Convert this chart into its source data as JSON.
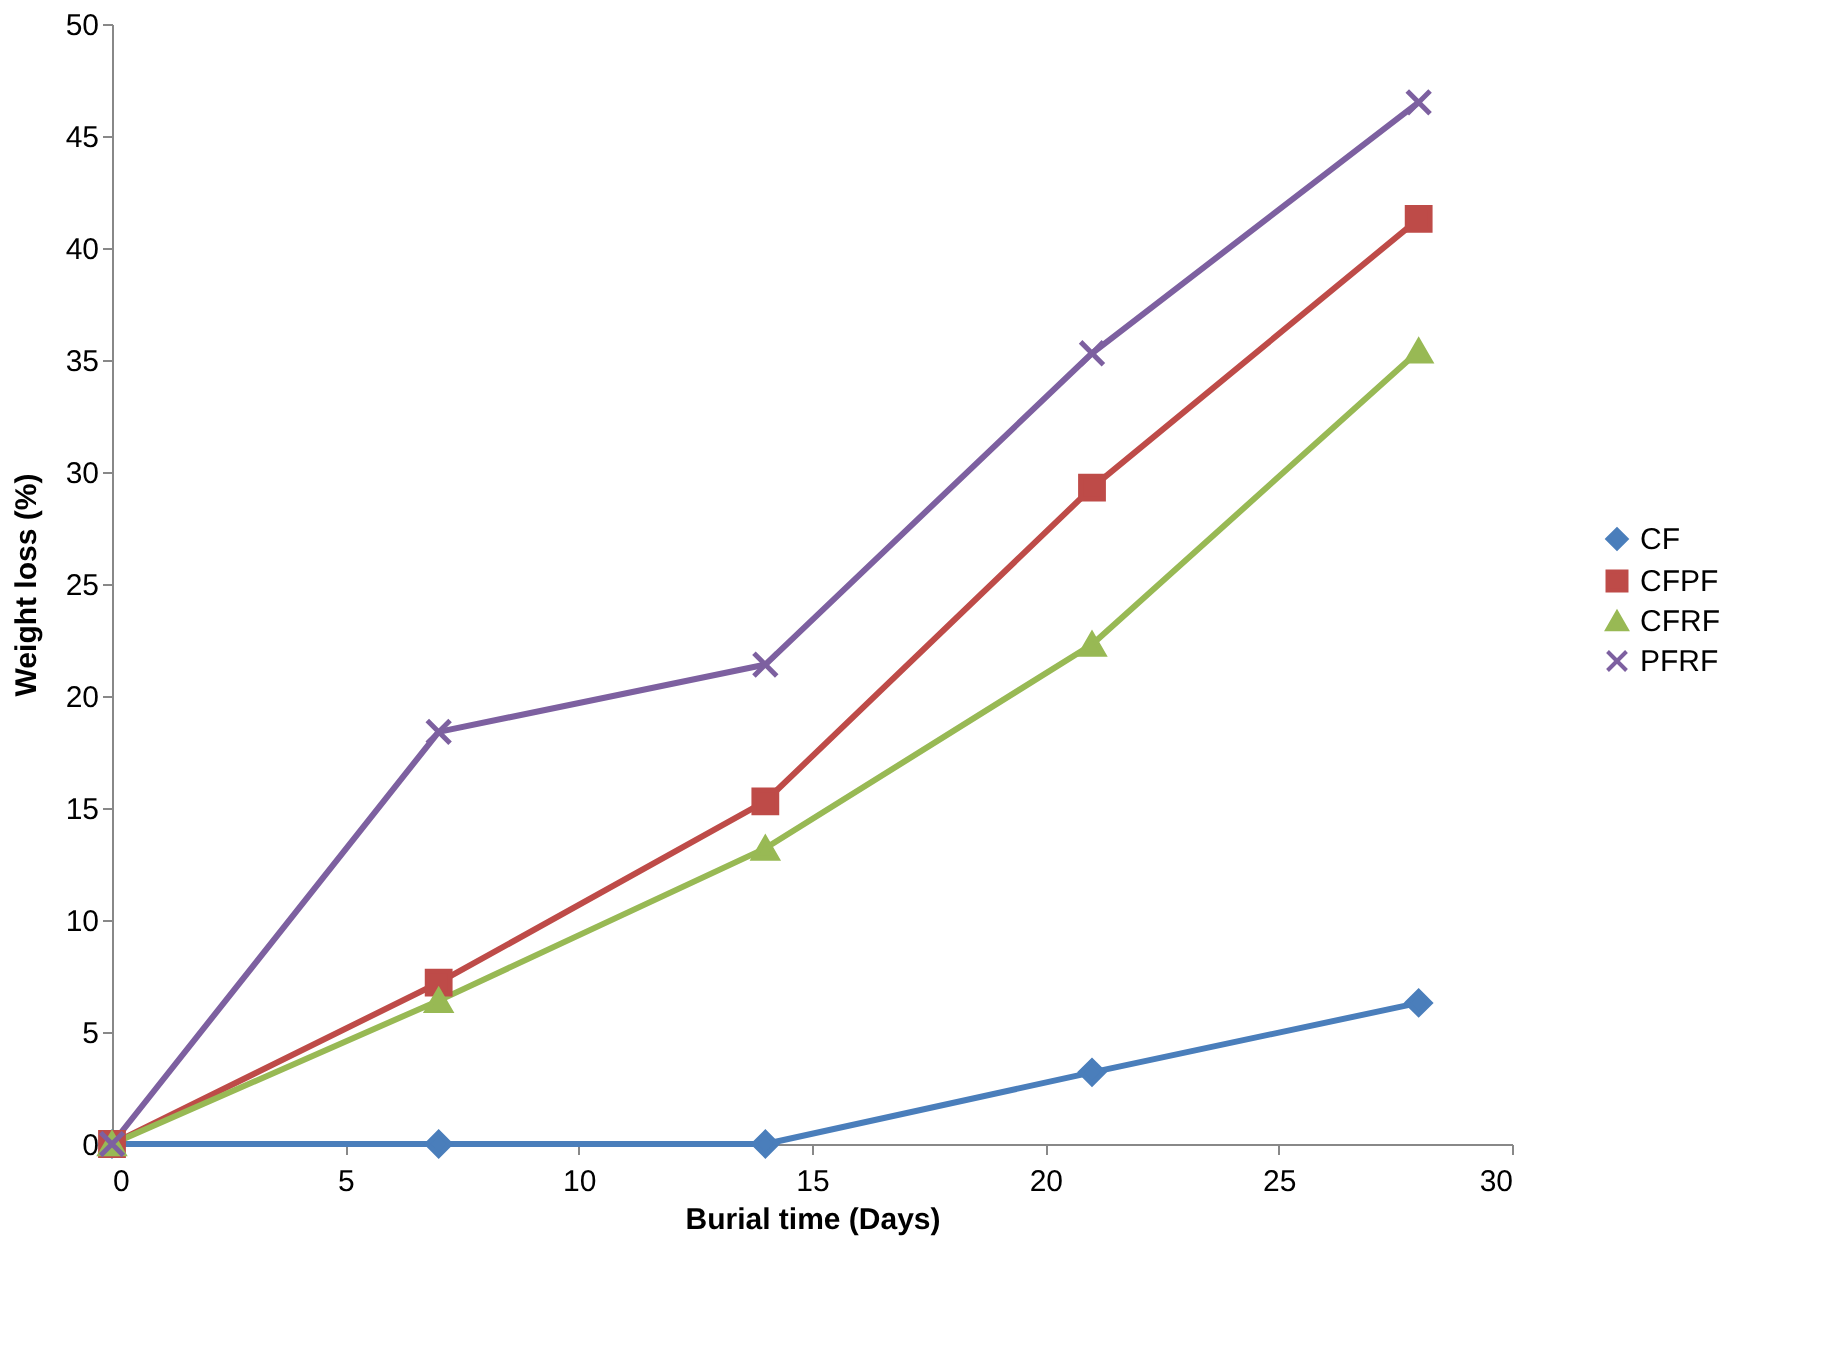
{
  "chart_data": {
    "type": "line",
    "xlabel": "Burial time (Days)",
    "ylabel": "Weight loss (%)",
    "x": [
      0,
      7,
      14,
      21,
      28
    ],
    "series": [
      {
        "name": "CF",
        "color": "#4a7ebb",
        "marker": "diamond",
        "values": [
          0,
          0,
          0,
          3.2,
          6.3
        ]
      },
      {
        "name": "CFPF",
        "color": "#be4b48",
        "marker": "square",
        "values": [
          0,
          7.2,
          15.3,
          29.3,
          41.3
        ]
      },
      {
        "name": "CFRF",
        "color": "#98b954",
        "marker": "triangle",
        "values": [
          0,
          6.4,
          13.2,
          22.3,
          35.4
        ]
      },
      {
        "name": "PFRF",
        "color": "#7d60a0",
        "marker": "cross",
        "values": [
          0,
          18.4,
          21.4,
          35.3,
          46.5
        ]
      }
    ],
    "xlim": [
      0,
      30
    ],
    "xticks": [
      0,
      5,
      10,
      15,
      20,
      25,
      30
    ],
    "ylim": [
      0,
      50
    ],
    "yticks": [
      0,
      5,
      10,
      15,
      20,
      25,
      30,
      35,
      40,
      45,
      50
    ],
    "grid": false,
    "legend": "right",
    "line_style": "solid"
  }
}
